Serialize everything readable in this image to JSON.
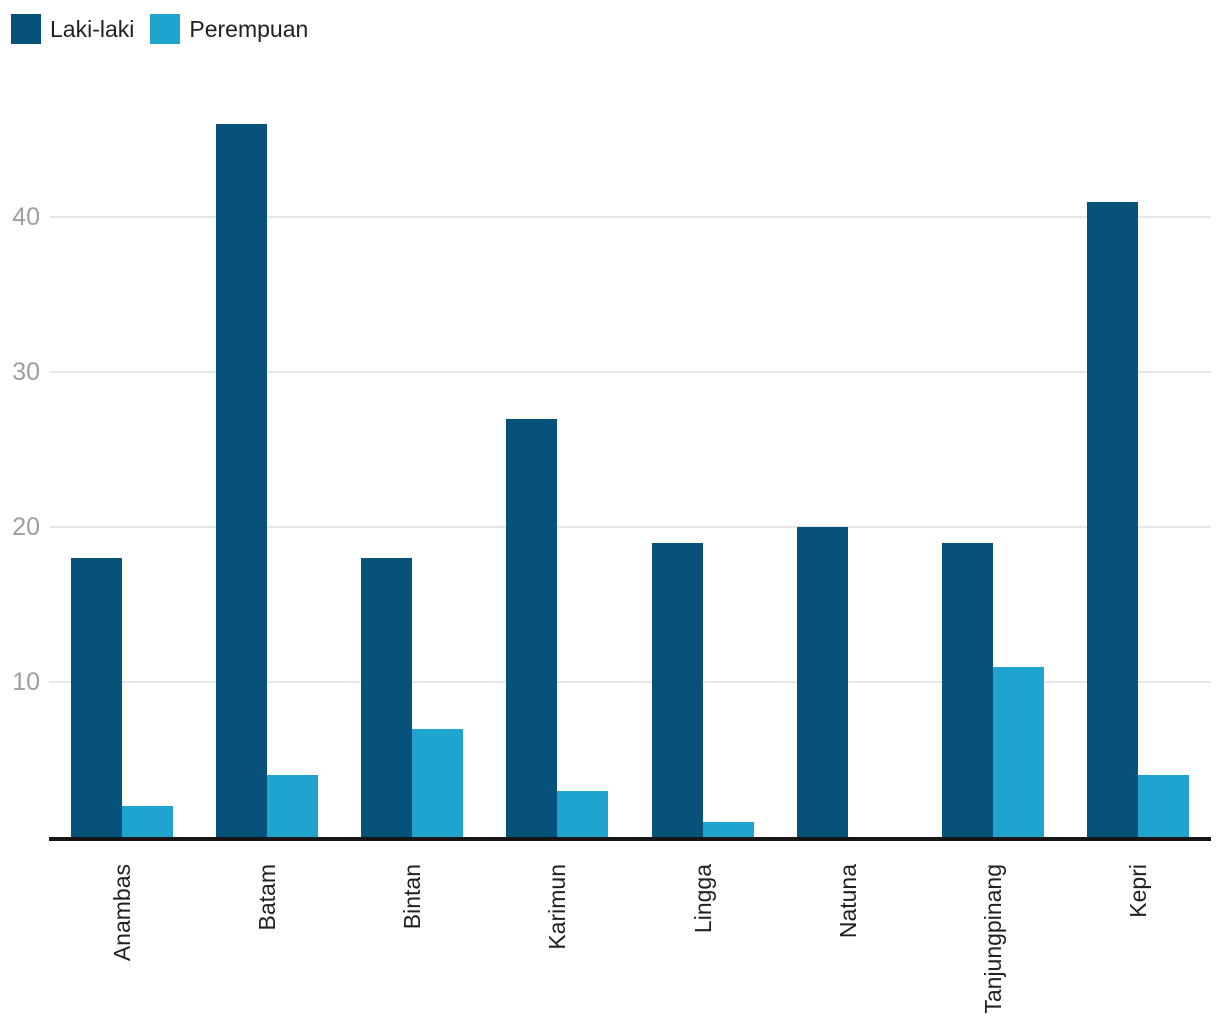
{
  "chart_data": {
    "type": "bar",
    "categories": [
      "Anambas",
      "Batam",
      "Bintan",
      "Karimun",
      "Lingga",
      "Natuna",
      "Tanjungpinang",
      "Kepri"
    ],
    "series": [
      {
        "name": "Laki-laki",
        "color": "#07527a",
        "values": [
          18,
          46,
          18,
          27,
          19,
          20,
          19,
          41
        ]
      },
      {
        "name": "Perempuan",
        "color": "#1fa3cf",
        "values": [
          2,
          4,
          7,
          3,
          1,
          0,
          11,
          4
        ]
      }
    ],
    "title": "",
    "xlabel": "",
    "ylabel": "",
    "ylim": [
      0,
      49.5
    ],
    "yticks": [
      10,
      20,
      30,
      40
    ],
    "grid": true,
    "legend_position": "top-left",
    "x_label_rotation": -90
  },
  "colors": {
    "background": "#ffffff",
    "gridline": "#e6e6e6",
    "axis_line": "#161616",
    "y_tick_label": "#9e9e9e",
    "x_category_label": "#212121"
  }
}
